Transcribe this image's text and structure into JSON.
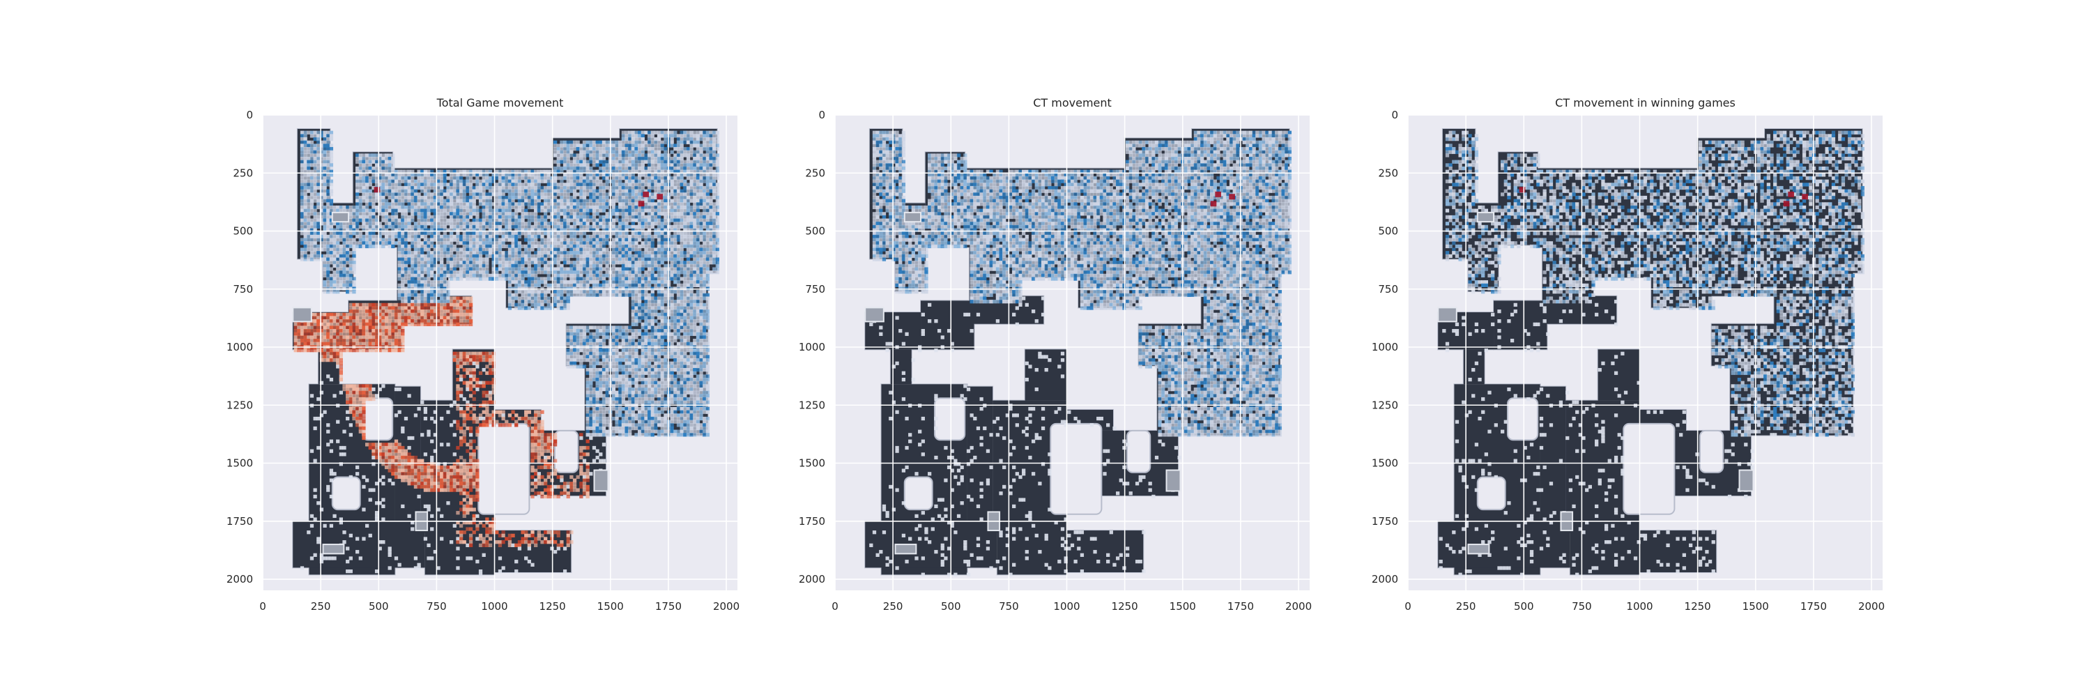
{
  "figure": {
    "background": "#ffffff"
  },
  "theme": {
    "axes_face": "#eaeaf2",
    "grid": "#ffffff",
    "map_dark": "#2f3542",
    "map_wall": "#b7bccb",
    "map_light": "#cfd6e6",
    "ct_color": "#2f80c3",
    "t_color": "#e7603e",
    "hot_color": "#a3142a"
  },
  "chart_data": [
    {
      "type": "heatmap",
      "title": "Total Game movement",
      "xlabel": "",
      "ylabel": "",
      "xlim": [
        0,
        2048
      ],
      "ylim": [
        2048,
        0
      ],
      "xticks": [
        0,
        250,
        500,
        750,
        1000,
        1250,
        1500,
        1750,
        2000
      ],
      "yticks": [
        0,
        250,
        500,
        750,
        1000,
        1250,
        1500,
        1750,
        2000
      ],
      "grid": true,
      "series": [
        {
          "name": "",
          "color": "#2f80c3",
          "coverage": "upper map (CT side)"
        },
        {
          "name": "",
          "color": "#e7603e",
          "coverage": "lower map (T side)"
        }
      ]
    },
    {
      "type": "heatmap",
      "title": "CT movement",
      "xlabel": "",
      "ylabel": "",
      "xlim": [
        0,
        2048
      ],
      "ylim": [
        2048,
        0
      ],
      "xticks": [
        0,
        250,
        500,
        750,
        1000,
        1250,
        1500,
        1750,
        2000
      ],
      "yticks": [
        0,
        250,
        500,
        750,
        1000,
        1250,
        1500,
        1750,
        2000
      ],
      "grid": true,
      "series": [
        {
          "name": "",
          "color": "#2f80c3",
          "coverage": "upper map"
        }
      ]
    },
    {
      "type": "heatmap",
      "title": "CT movement in winning games",
      "xlabel": "",
      "ylabel": "",
      "xlim": [
        0,
        2048
      ],
      "ylim": [
        2048,
        0
      ],
      "xticks": [
        0,
        250,
        500,
        750,
        1000,
        1250,
        1500,
        1750,
        2000
      ],
      "yticks": [
        0,
        250,
        500,
        750,
        1000,
        1250,
        1500,
        1750,
        2000
      ],
      "grid": true,
      "series": [
        {
          "name": "",
          "color": "#2f80c3",
          "coverage": "upper map, sparse"
        }
      ]
    }
  ]
}
